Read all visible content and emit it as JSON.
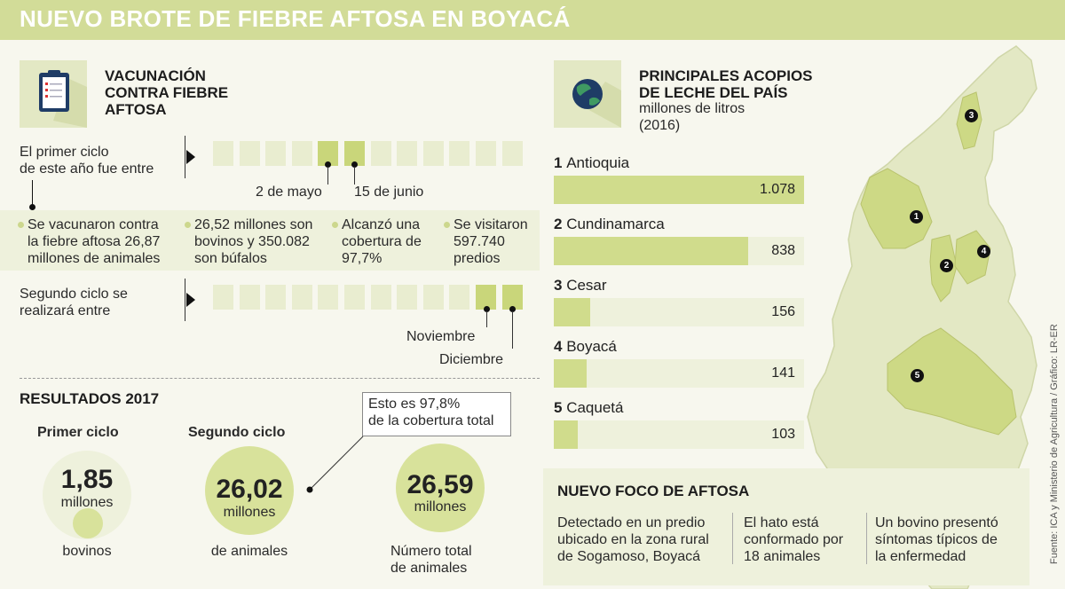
{
  "title": "NUEVO BROTE DE FIEBRE AFTOSA EN BOYACÁ",
  "vacunacion": {
    "header": [
      "VACUNACIÓN",
      "CONTRA FIEBRE",
      "AFTOSA"
    ],
    "first_cycle_label": [
      "El primer ciclo",
      "de este año fue entre"
    ],
    "first_cycle_dates": [
      "2 de mayo",
      "15 de junio"
    ],
    "facts": [
      [
        "Se vacunaron contra",
        "la fiebre aftosa 26,87",
        "millones de animales"
      ],
      [
        "26,52 millones son",
        "bovinos y 350.082",
        "son búfalos"
      ],
      [
        "Alcanzó una",
        "cobertura de",
        "97,7%"
      ],
      [
        "Se visitaron",
        "597.740",
        "predios"
      ]
    ],
    "second_cycle_label": [
      "Segundo ciclo se",
      "realizará entre"
    ],
    "second_cycle_dates": [
      "Noviembre",
      "Diciembre"
    ]
  },
  "resultados": {
    "header": "RESULTADOS 2017",
    "first": {
      "label": "Primer ciclo",
      "value": "1,85",
      "unit": "millones",
      "caption": "bovinos"
    },
    "second": {
      "label": "Segundo ciclo",
      "value": "26,02",
      "unit": "millones",
      "caption": "de animales"
    },
    "total": {
      "value": "26,59",
      "unit": "millones",
      "caption": [
        "Número total",
        "de animales"
      ]
    },
    "callout": [
      "Esto es 97,8%",
      "de la cobertura total"
    ]
  },
  "acopios": {
    "header": [
      "PRINCIPALES ACOPIOS",
      "DE LECHE DEL PAÍS"
    ],
    "subtitle": [
      "millones de litros",
      "(2016)"
    ]
  },
  "chart_data": {
    "type": "bar",
    "title": "PRINCIPALES ACOPIOS DE LECHE DEL PAÍS",
    "subtitle": "millones de litros (2016)",
    "categories": [
      "Antioquia",
      "Cundinamarca",
      "Cesar",
      "Boyacá",
      "Caquetá"
    ],
    "ranks": [
      "1",
      "2",
      "3",
      "4",
      "5"
    ],
    "values": [
      1078,
      838,
      156,
      141,
      103
    ],
    "labels": [
      "1.078",
      "838",
      "156",
      "141",
      "103"
    ],
    "orientation": "horizontal",
    "xlim": [
      0,
      1078
    ]
  },
  "foco": {
    "header": "NUEVO FOCO DE AFTOSA",
    "cols": [
      [
        "Detectado en un predio",
        "ubicado en la zona rural",
        "de Sogamoso, Boyacá"
      ],
      [
        "El hato está",
        "conformado por",
        "18 animales"
      ],
      [
        "Un bovino presentó",
        "síntomas típicos de",
        "la enfermedad"
      ]
    ]
  },
  "map_pins": [
    "1",
    "2",
    "3",
    "4",
    "5"
  ],
  "source": "Fuente: ICA y Ministerio de Agricultura / Gráfico: LR-ER",
  "colors": {
    "accent": "#d2dc98",
    "fill": "#d0dc8c",
    "panel": "#eef1dc"
  },
  "icons": [
    "clipboard-icon",
    "globe-icon"
  ]
}
